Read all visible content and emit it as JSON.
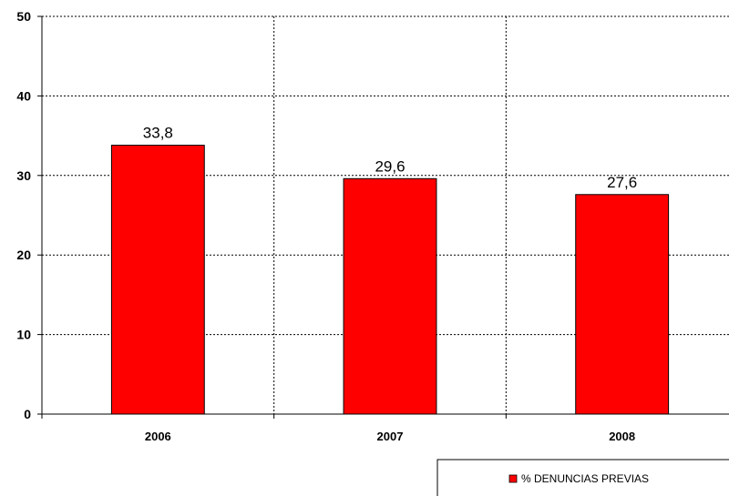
{
  "chart_data": {
    "type": "bar",
    "categories": [
      "2006",
      "2007",
      "2008"
    ],
    "series": [
      {
        "name": "% DENUNCIAS PREVIAS",
        "values": [
          33.8,
          29.6,
          27.6
        ],
        "labels": [
          "33,8",
          "29,6",
          "27,6"
        ],
        "color": "#ff0000"
      }
    ],
    "ylim": [
      0,
      50
    ],
    "yticks": [
      0,
      10,
      20,
      30,
      40,
      50
    ],
    "grid": true,
    "legend_position": "bottom-right",
    "title": "",
    "xlabel": "",
    "ylabel": ""
  }
}
